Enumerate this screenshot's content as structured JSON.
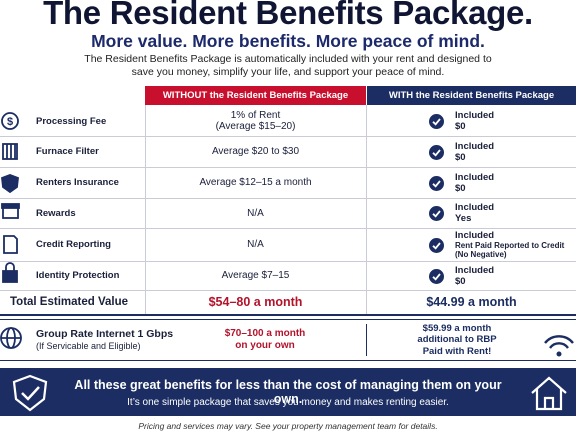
{
  "title": "The Resident Benefits Package.",
  "subtitle": "More value. More benefits. More peace of mind.",
  "intro": [
    "The Resident Benefits Package is automatically included with your rent and designed to",
    "save you money, simplify your life, and support your peace of mind."
  ],
  "table": {
    "headers": [
      "WITHOUT the Resident Benefits Package",
      "WITH the Resident Benefits Package"
    ],
    "rows": [
      {
        "label": "Processing Fee",
        "without": [
          "1% of Rent",
          "(Average $15–20)"
        ],
        "with": [
          "Included",
          "$0"
        ]
      },
      {
        "label": "Furnace Filter",
        "without": [
          "Average $20 to $30"
        ],
        "with": [
          "Included",
          "$0"
        ]
      },
      {
        "label": "Renters Insurance",
        "without": [
          "Average $12–15 a month"
        ],
        "with": [
          "Included",
          "$0"
        ]
      },
      {
        "label": "Rewards",
        "without": [
          "N/A"
        ],
        "with": [
          "Included",
          "Yes"
        ]
      },
      {
        "label": "Credit Reporting",
        "without": [
          "N/A"
        ],
        "with": [
          "Included",
          "Rent Paid Reported to Credit",
          "(No Negative)"
        ]
      },
      {
        "label": "Identity Protection",
        "without": [
          "Average $7–15"
        ],
        "with": [
          "Included",
          "$0"
        ]
      }
    ],
    "total": {
      "label": "Total Estimated Value",
      "without": "$54–80 a month",
      "with": "$44.99 a month"
    },
    "internet": {
      "label": [
        "Group Rate Internet 1 Gbps",
        "(If Servicable and Eligible)"
      ],
      "without": [
        "$70–100 a month",
        "on your own"
      ],
      "with": [
        "$59.99 a month",
        "additional to RBP",
        "Paid with Rent!"
      ]
    }
  },
  "banner": {
    "headline": "All these great benefits for less than the cost of managing them on your own.",
    "text": "It’s one simple package that saves you money and makes renting easier."
  },
  "footer": "Pricing and services may vary. See your property management team for details."
}
